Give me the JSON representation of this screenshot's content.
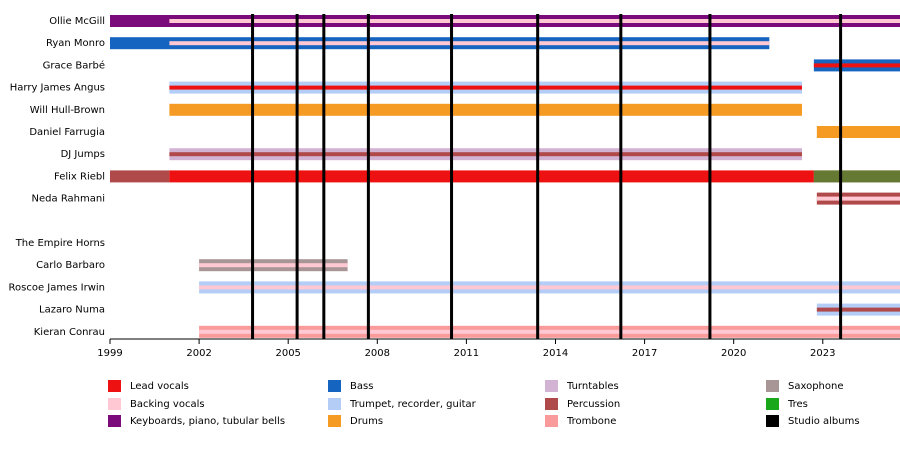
{
  "chart_data": {
    "type": "timeline",
    "roles": [
      {
        "name": "Lead vocals",
        "color": "#ee1111"
      },
      {
        "name": "Backing vocals",
        "color": "#ffc8d2"
      },
      {
        "name": "Keyboards, piano, tubular bells",
        "color": "#7b0b7b"
      },
      {
        "name": "Bass",
        "color": "#1565c0"
      },
      {
        "name": "Trumpet, recorder, guitar",
        "color": "#b4cdf6"
      },
      {
        "name": "Drums",
        "color": "#f59b23"
      },
      {
        "name": "Turntables",
        "color": "#d3b3d3"
      },
      {
        "name": "Percussion",
        "color": "#b04a4a"
      },
      {
        "name": "Trombone",
        "color": "#fa9b9b"
      },
      {
        "name": "Saxophone",
        "color": "#a89696"
      },
      {
        "name": "Tres",
        "color": "#1aa81a"
      },
      {
        "name": "Studio albums",
        "color": "#000000"
      }
    ],
    "members": [
      {
        "name": "Ollie McGill",
        "spans": [
          {
            "role": "Keyboards, piano, tubular bells",
            "start": 1999,
            "end": 2025.6,
            "thin": false
          },
          {
            "role": "Backing vocals",
            "start": 2001,
            "end": 2025.6,
            "thin": true
          }
        ]
      },
      {
        "name": "Ryan Monro",
        "spans": [
          {
            "role": "Bass",
            "start": 1999,
            "end": 2021.2,
            "thin": false
          },
          {
            "role": "Backing vocals",
            "start": 2001,
            "end": 2021.2,
            "thin": true
          }
        ]
      },
      {
        "name": "Grace Barbé",
        "spans": [
          {
            "role": "Bass",
            "start": 2022.7,
            "end": 2025.6,
            "thin": false
          },
          {
            "role": "Lead vocals",
            "start": 2022.7,
            "end": 2025.6,
            "thin": true
          }
        ]
      },
      {
        "name": "Harry James Angus",
        "spans": [
          {
            "role": "Trumpet, recorder, guitar",
            "start": 2001,
            "end": 2022.3,
            "thin": false
          },
          {
            "role": "Lead vocals",
            "start": 2001,
            "end": 2022.3,
            "thin": true
          }
        ]
      },
      {
        "name": "Will Hull-Brown",
        "spans": [
          {
            "role": "Drums",
            "start": 2001,
            "end": 2022.3,
            "thin": false
          }
        ]
      },
      {
        "name": "Daniel Farrugia",
        "spans": [
          {
            "role": "Drums",
            "start": 2022.8,
            "end": 2025.6,
            "thin": false
          }
        ]
      },
      {
        "name": "DJ Jumps",
        "spans": [
          {
            "role": "Turntables",
            "start": 2001,
            "end": 2022.3,
            "thin": false
          },
          {
            "role": "Percussion",
            "start": 2001,
            "end": 2022.3,
            "thin": true
          }
        ]
      },
      {
        "name": "Felix Riebl",
        "spans": [
          {
            "role": "Percussion",
            "start": 1999,
            "end": 2001,
            "thin": false
          },
          {
            "role": "Lead vocals",
            "start": 2001,
            "end": 2022.7,
            "thin": false
          },
          {
            "role": "Percussion",
            "start": 2022.7,
            "end": 2025.6,
            "thin": false
          },
          {
            "role": "Tres",
            "start": 2022.7,
            "end": 2025.6,
            "thin": false
          }
        ]
      },
      {
        "name": "Neda Rahmani",
        "spans": [
          {
            "role": "Percussion",
            "start": 2022.8,
            "end": 2025.6,
            "thin": false
          },
          {
            "role": "Backing vocals",
            "start": 2022.8,
            "end": 2025.6,
            "thin": true
          }
        ]
      },
      {
        "name": "The Empire Horns",
        "spans": []
      },
      {
        "name": "Carlo Barbaro",
        "spans": [
          {
            "role": "Saxophone",
            "start": 2002,
            "end": 2007,
            "thin": false
          },
          {
            "role": "Backing vocals",
            "start": 2002,
            "end": 2007,
            "thin": true
          }
        ]
      },
      {
        "name": "Roscoe James Irwin",
        "spans": [
          {
            "role": "Trumpet, recorder, guitar",
            "start": 2002,
            "end": 2025.6,
            "thin": false
          },
          {
            "role": "Backing vocals",
            "start": 2002,
            "end": 2025.6,
            "thin": true
          }
        ]
      },
      {
        "name": "Lazaro Numa",
        "spans": [
          {
            "role": "Trumpet, recorder, guitar",
            "start": 2022.8,
            "end": 2025.6,
            "thin": false
          },
          {
            "role": "Percussion",
            "start": 2022.8,
            "end": 2025.6,
            "thin": true
          }
        ]
      },
      {
        "name": "Kieran Conrau",
        "spans": [
          {
            "role": "Trombone",
            "start": 2002,
            "end": 2025.6,
            "thin": false
          },
          {
            "role": "Backing vocals",
            "start": 2002,
            "end": 2025.6,
            "thin": true
          }
        ]
      }
    ],
    "albums": [
      2003.8,
      2005.3,
      2006.2,
      2007.7,
      2010.5,
      2013.4,
      2016.2,
      2019.2,
      2023.6
    ],
    "xlim": [
      1999,
      2025.6
    ],
    "xticks": [
      1999,
      2002,
      2005,
      2008,
      2011,
      2014,
      2017,
      2020,
      2023
    ]
  }
}
